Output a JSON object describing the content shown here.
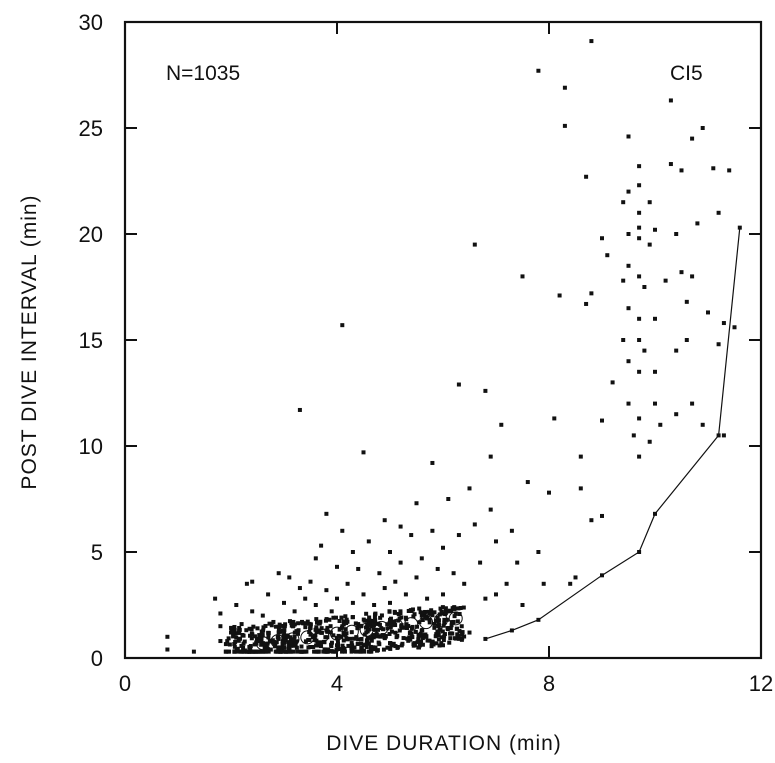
{
  "chart_data": {
    "type": "scatter",
    "xlabel": "DIVE DURATION (min)",
    "ylabel": "POST DIVE INTERVAL (min)",
    "xlim": [
      0,
      12
    ],
    "ylim": [
      0,
      30
    ],
    "x_ticks": [
      "0",
      "4",
      "8",
      "12"
    ],
    "y_ticks": [
      "0",
      "5",
      "10",
      "15",
      "20",
      "25",
      "30"
    ],
    "annotations": {
      "n_label": "N=1035",
      "id_label": "CI5"
    },
    "grid": false,
    "series": [
      {
        "kind": "points",
        "points": [
          [
            0.8,
            1.0
          ],
          [
            0.8,
            0.4
          ],
          [
            1.3,
            0.3
          ],
          [
            1.7,
            2.8
          ],
          [
            1.8,
            2.1
          ],
          [
            1.8,
            1.5
          ],
          [
            1.8,
            0.8
          ],
          [
            2.0,
            1.2
          ],
          [
            2.1,
            2.5
          ],
          [
            2.2,
            1.6
          ],
          [
            2.3,
            3.5
          ],
          [
            2.4,
            3.6
          ],
          [
            2.4,
            2.2
          ],
          [
            2.5,
            1.4
          ],
          [
            2.6,
            2.0
          ],
          [
            2.7,
            3.0
          ],
          [
            2.8,
            1.7
          ],
          [
            2.9,
            4.0
          ],
          [
            3.0,
            2.6
          ],
          [
            3.1,
            3.8
          ],
          [
            3.2,
            2.2
          ],
          [
            3.3,
            11.7
          ],
          [
            3.3,
            3.3
          ],
          [
            3.4,
            2.8
          ],
          [
            3.5,
            3.6
          ],
          [
            3.6,
            4.7
          ],
          [
            3.6,
            2.5
          ],
          [
            3.7,
            5.3
          ],
          [
            3.8,
            3.2
          ],
          [
            3.8,
            6.8
          ],
          [
            3.9,
            2.2
          ],
          [
            4.0,
            4.3
          ],
          [
            4.0,
            2.8
          ],
          [
            4.1,
            15.7
          ],
          [
            4.1,
            6.0
          ],
          [
            4.2,
            3.5
          ],
          [
            4.3,
            5.0
          ],
          [
            4.3,
            2.6
          ],
          [
            4.4,
            4.2
          ],
          [
            4.5,
            9.7
          ],
          [
            4.5,
            3.0
          ],
          [
            4.6,
            5.5
          ],
          [
            4.7,
            2.5
          ],
          [
            4.8,
            4.0
          ],
          [
            4.9,
            6.5
          ],
          [
            4.9,
            3.3
          ],
          [
            5.0,
            5.0
          ],
          [
            5.0,
            2.6
          ],
          [
            5.1,
            3.6
          ],
          [
            5.2,
            6.2
          ],
          [
            5.2,
            4.5
          ],
          [
            5.3,
            3.0
          ],
          [
            5.4,
            5.8
          ],
          [
            5.5,
            3.8
          ],
          [
            5.5,
            7.3
          ],
          [
            5.6,
            4.7
          ],
          [
            5.7,
            2.8
          ],
          [
            5.8,
            9.2
          ],
          [
            5.8,
            6.0
          ],
          [
            5.9,
            4.2
          ],
          [
            6.0,
            5.2
          ],
          [
            6.0,
            3.0
          ],
          [
            6.1,
            7.5
          ],
          [
            6.2,
            4.0
          ],
          [
            6.3,
            12.9
          ],
          [
            6.3,
            5.8
          ],
          [
            6.4,
            3.5
          ],
          [
            6.5,
            8.0
          ],
          [
            6.6,
            19.5
          ],
          [
            6.6,
            6.3
          ],
          [
            6.7,
            4.5
          ],
          [
            6.8,
            12.6
          ],
          [
            6.8,
            2.8
          ],
          [
            6.9,
            9.5
          ],
          [
            6.9,
            7.0
          ],
          [
            7.0,
            5.5
          ],
          [
            7.0,
            3.0
          ],
          [
            7.1,
            11.0
          ],
          [
            7.2,
            3.5
          ],
          [
            7.3,
            6.0
          ],
          [
            7.4,
            4.5
          ],
          [
            7.5,
            18.0
          ],
          [
            7.5,
            2.5
          ],
          [
            7.6,
            8.3
          ],
          [
            7.8,
            27.7
          ],
          [
            7.8,
            5.0
          ],
          [
            7.9,
            3.5
          ],
          [
            8.0,
            7.8
          ],
          [
            8.1,
            11.3
          ],
          [
            8.2,
            17.1
          ],
          [
            8.3,
            26.9
          ],
          [
            8.3,
            25.1
          ],
          [
            8.4,
            3.5
          ],
          [
            8.5,
            3.8
          ],
          [
            8.6,
            9.5
          ],
          [
            8.6,
            8.0
          ],
          [
            8.7,
            22.7
          ],
          [
            8.7,
            16.7
          ],
          [
            8.8,
            6.5
          ],
          [
            8.8,
            17.2
          ],
          [
            8.8,
            29.1
          ],
          [
            9.0,
            19.8
          ],
          [
            9.0,
            11.2
          ],
          [
            9.0,
            6.7
          ],
          [
            9.1,
            19.0
          ],
          [
            9.2,
            13.0
          ],
          [
            9.4,
            21.5
          ],
          [
            9.4,
            17.8
          ],
          [
            9.4,
            15.0
          ],
          [
            9.5,
            24.6
          ],
          [
            9.5,
            22.0
          ],
          [
            9.5,
            20.0
          ],
          [
            9.5,
            18.5
          ],
          [
            9.5,
            16.5
          ],
          [
            9.5,
            14.0
          ],
          [
            9.5,
            12.0
          ],
          [
            9.6,
            10.5
          ],
          [
            9.7,
            23.2
          ],
          [
            9.7,
            22.3
          ],
          [
            9.7,
            21.0
          ],
          [
            9.7,
            20.3
          ],
          [
            9.7,
            19.8
          ],
          [
            9.7,
            18.0
          ],
          [
            9.7,
            16.0
          ],
          [
            9.7,
            15.0
          ],
          [
            9.7,
            13.5
          ],
          [
            9.7,
            11.3
          ],
          [
            9.7,
            9.5
          ],
          [
            9.8,
            17.5
          ],
          [
            9.8,
            14.5
          ],
          [
            9.9,
            21.5
          ],
          [
            9.9,
            19.5
          ],
          [
            9.9,
            10.2
          ],
          [
            10.0,
            20.2
          ],
          [
            10.0,
            16.0
          ],
          [
            10.0,
            13.5
          ],
          [
            10.0,
            12.0
          ],
          [
            10.1,
            11.0
          ],
          [
            10.2,
            17.8
          ],
          [
            10.3,
            26.3
          ],
          [
            10.3,
            23.3
          ],
          [
            10.4,
            20.0
          ],
          [
            10.4,
            14.5
          ],
          [
            10.4,
            11.5
          ],
          [
            10.5,
            23.0
          ],
          [
            10.5,
            18.2
          ],
          [
            10.6,
            16.8
          ],
          [
            10.6,
            15.0
          ],
          [
            10.7,
            24.5
          ],
          [
            10.7,
            18.0
          ],
          [
            10.7,
            12.0
          ],
          [
            10.8,
            20.5
          ],
          [
            10.9,
            25.0
          ],
          [
            10.9,
            11.0
          ],
          [
            11.0,
            16.3
          ],
          [
            11.1,
            23.1
          ],
          [
            11.2,
            21.0
          ],
          [
            11.2,
            14.8
          ],
          [
            11.3,
            15.8
          ],
          [
            11.3,
            10.5
          ],
          [
            11.4,
            23.0
          ],
          [
            11.5,
            15.6
          ],
          [
            2.6,
            0.7
          ],
          [
            2.9,
            0.9
          ],
          [
            3.2,
            1.0
          ],
          [
            3.5,
            1.1
          ],
          [
            3.8,
            1.3
          ],
          [
            4.1,
            1.5
          ],
          [
            4.4,
            1.6
          ],
          [
            4.7,
            1.7
          ],
          [
            5.0,
            1.8
          ],
          [
            5.3,
            1.9
          ],
          [
            5.6,
            2.0
          ],
          [
            5.9,
            1.9
          ],
          [
            6.2,
            1.7
          ],
          [
            3.0,
            0.5
          ],
          [
            4.0,
            0.6
          ],
          [
            5.0,
            0.7
          ],
          [
            6.0,
            0.6
          ],
          [
            6.5,
            1.2
          ]
        ]
      },
      {
        "kind": "dense_cluster",
        "x_range": [
          1.9,
          6.4
        ],
        "y_range": [
          0.3,
          2.4
        ]
      },
      {
        "kind": "line",
        "x": [
          6.8,
          7.3,
          7.8,
          9.0,
          9.7,
          10.0,
          11.2,
          11.6
        ],
        "y": [
          0.9,
          1.3,
          1.8,
          3.9,
          5.0,
          6.8,
          10.5,
          20.3
        ]
      }
    ]
  }
}
